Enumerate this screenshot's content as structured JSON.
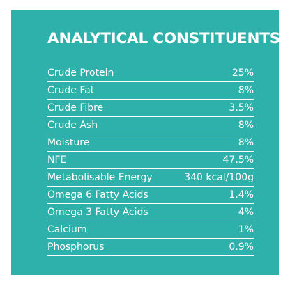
{
  "panel": {
    "title": "ANALYTICAL CONSTITUENTS",
    "background": "#2fb1ab",
    "rows": [
      {
        "label": "Crude Protein",
        "value": "25%"
      },
      {
        "label": "Crude Fat",
        "value": "8%"
      },
      {
        "label": "Crude Fibre",
        "value": "3.5%"
      },
      {
        "label": "Crude Ash",
        "value": "8%"
      },
      {
        "label": "Moisture",
        "value": "8%"
      },
      {
        "label": "NFE",
        "value": "47.5%"
      },
      {
        "label": "Metabolisable Energy",
        "value": "340 kcal/100g"
      },
      {
        "label": "Omega 6 Fatty Acids",
        "value": "1.4%"
      },
      {
        "label": "Omega 3 Fatty Acids",
        "value": "4%"
      },
      {
        "label": "Calcium",
        "value": "1%"
      },
      {
        "label": "Phosphorus",
        "value": "0.9%"
      }
    ]
  }
}
